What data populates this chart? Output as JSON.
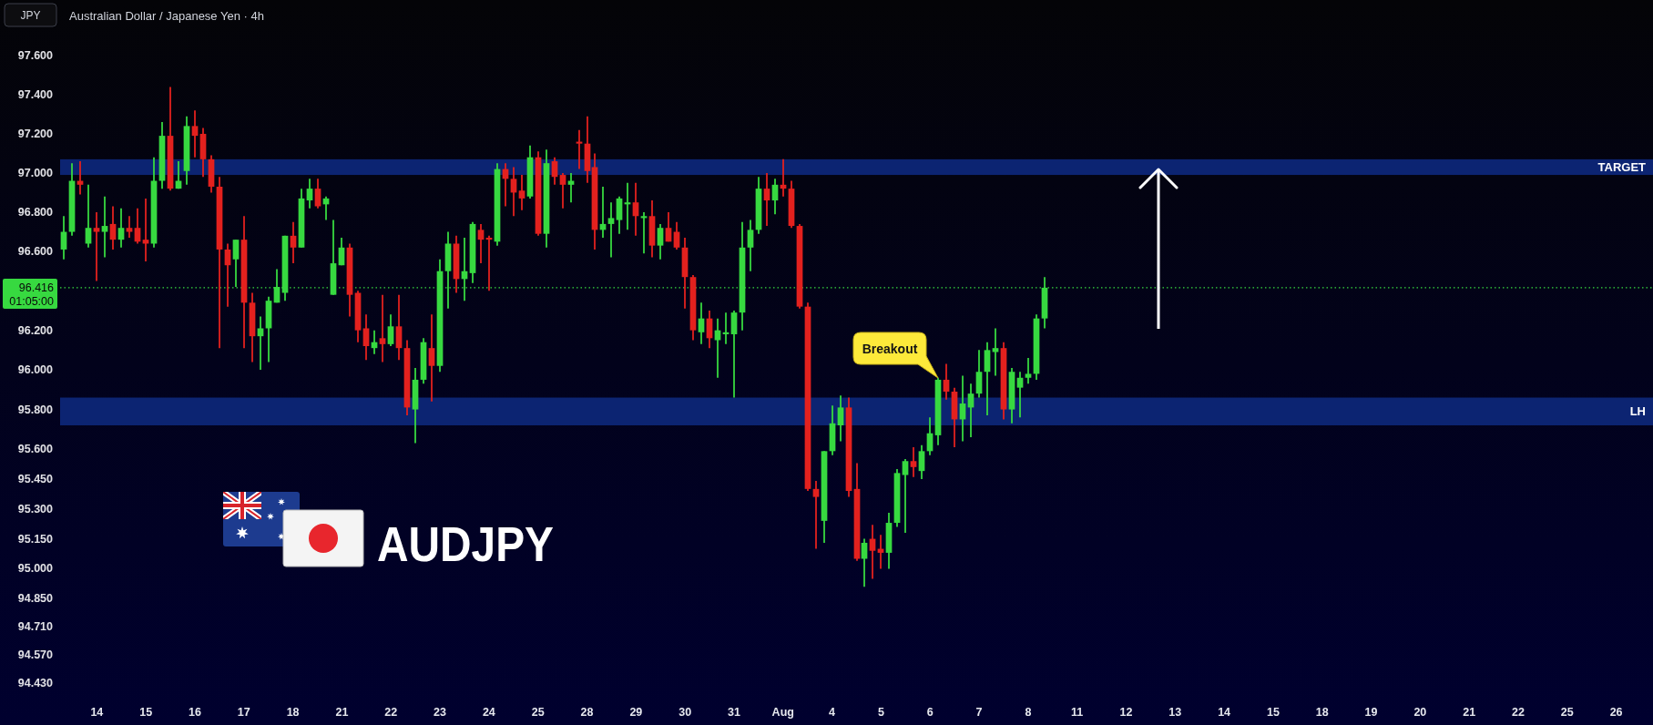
{
  "chart_data": {
    "type": "candlestick",
    "title": "Australian Dollar / Japanese Yen · 4h",
    "ylabel": "JPY",
    "categories": [
      null,
      null,
      null,
      null,
      "14",
      null,
      null,
      null,
      null,
      null,
      "15",
      null,
      null,
      null,
      null,
      null,
      "16",
      null,
      null,
      null,
      null,
      null,
      "17",
      null,
      null,
      null,
      null,
      null,
      "18",
      null,
      null,
      null,
      null,
      null,
      "21",
      null,
      null,
      null,
      null,
      null,
      "22",
      null,
      null,
      null,
      null,
      null,
      "23",
      null,
      null,
      null,
      null,
      null,
      "24",
      null,
      null,
      null,
      null,
      null,
      "25",
      null,
      null,
      null,
      null,
      null,
      "28",
      null,
      null,
      null,
      null,
      null,
      "29",
      null,
      null,
      null,
      null,
      null,
      "30",
      null,
      null,
      null,
      null,
      null,
      "31",
      null,
      null,
      null,
      null,
      null,
      "Aug",
      null,
      null,
      null,
      null,
      null,
      "4",
      null,
      null,
      null,
      null,
      null,
      "5",
      null,
      null,
      null,
      null,
      null,
      "6",
      null,
      null,
      null,
      null,
      null,
      "7",
      null,
      null,
      null,
      null,
      null,
      "8",
      null,
      null,
      null,
      null,
      null,
      "11",
      null,
      null,
      null,
      null,
      null,
      "12",
      null,
      null,
      null,
      null,
      null,
      "13",
      null,
      null,
      null,
      null,
      null,
      "14",
      null,
      null,
      null,
      null,
      null,
      "15",
      null,
      null,
      null,
      null,
      null,
      "18",
      null,
      null,
      null,
      null,
      null,
      "19",
      null,
      null,
      null,
      null,
      null,
      "20",
      null,
      null,
      null,
      null,
      null,
      "21",
      null,
      null,
      null,
      null,
      null,
      "22",
      null,
      null,
      null,
      null,
      null,
      "25",
      null,
      null,
      null,
      null,
      null,
      "26",
      null,
      null,
      null,
      null
    ],
    "ohlc": [
      [
        96.61,
        96.78,
        96.56,
        96.7
      ],
      [
        96.7,
        97.05,
        96.68,
        96.96
      ],
      [
        96.96,
        97.06,
        96.89,
        96.94
      ],
      [
        96.64,
        96.94,
        96.62,
        96.72
      ],
      [
        96.72,
        96.8,
        96.45,
        96.7
      ],
      [
        96.7,
        96.88,
        96.57,
        96.73
      ],
      [
        96.74,
        96.83,
        96.61,
        96.66
      ],
      [
        96.66,
        96.82,
        96.62,
        96.72
      ],
      [
        96.72,
        96.78,
        96.67,
        96.7
      ],
      [
        96.72,
        96.82,
        96.64,
        96.65
      ],
      [
        96.66,
        96.87,
        96.55,
        96.64
      ],
      [
        96.64,
        97.08,
        96.62,
        96.96
      ],
      [
        96.96,
        97.26,
        96.92,
        97.19
      ],
      [
        97.19,
        97.44,
        96.91,
        96.92
      ],
      [
        96.92,
        97.06,
        96.92,
        96.96
      ],
      [
        97.01,
        97.29,
        96.94,
        97.24
      ],
      [
        97.24,
        97.32,
        97.08,
        97.19
      ],
      [
        97.2,
        97.23,
        96.98,
        97.07
      ],
      [
        97.07,
        97.09,
        96.9,
        96.93
      ],
      [
        96.93,
        96.98,
        96.11,
        96.61
      ],
      [
        96.61,
        96.64,
        96.32,
        96.53
      ],
      [
        96.56,
        96.66,
        96.42,
        96.66
      ],
      [
        96.66,
        96.78,
        96.11,
        96.34
      ],
      [
        96.34,
        96.39,
        96.04,
        96.17
      ],
      [
        96.17,
        96.27,
        96.0,
        96.21
      ],
      [
        96.21,
        96.37,
        96.04,
        96.35
      ],
      [
        96.34,
        96.51,
        96.34,
        96.42
      ],
      [
        96.39,
        96.68,
        96.35,
        96.68
      ],
      [
        96.68,
        96.75,
        96.54,
        96.62
      ],
      [
        96.62,
        96.92,
        96.62,
        96.87
      ],
      [
        96.86,
        96.97,
        96.82,
        96.92
      ],
      [
        96.92,
        96.97,
        96.82,
        96.83
      ],
      [
        96.84,
        96.88,
        96.76,
        96.87
      ],
      [
        96.38,
        96.76,
        96.38,
        96.54
      ],
      [
        96.53,
        96.67,
        96.53,
        96.62
      ],
      [
        96.62,
        96.64,
        96.27,
        96.38
      ],
      [
        96.39,
        96.4,
        96.14,
        96.2
      ],
      [
        96.21,
        96.28,
        96.05,
        96.12
      ],
      [
        96.11,
        96.2,
        96.08,
        96.14
      ],
      [
        96.16,
        96.38,
        96.04,
        96.13
      ],
      [
        96.13,
        96.28,
        96.12,
        96.22
      ],
      [
        96.22,
        96.38,
        96.05,
        96.11
      ],
      [
        96.11,
        96.15,
        95.77,
        95.81
      ],
      [
        95.8,
        96.01,
        95.63,
        95.95
      ],
      [
        95.95,
        96.16,
        95.93,
        96.14
      ],
      [
        96.11,
        96.28,
        95.84,
        96.02
      ],
      [
        96.02,
        96.56,
        95.99,
        96.5
      ],
      [
        96.5,
        96.7,
        96.31,
        96.64
      ],
      [
        96.64,
        96.68,
        96.39,
        96.46
      ],
      [
        96.46,
        96.67,
        96.35,
        96.5
      ],
      [
        96.49,
        96.75,
        96.44,
        96.74
      ],
      [
        96.71,
        96.74,
        96.54,
        96.66
      ],
      [
        96.67,
        96.68,
        96.4,
        96.66
      ],
      [
        96.65,
        97.05,
        96.63,
        97.02
      ],
      [
        97.02,
        97.05,
        96.83,
        96.97
      ],
      [
        96.97,
        97.03,
        96.78,
        96.9
      ],
      [
        96.91,
        96.99,
        96.81,
        96.87
      ],
      [
        96.88,
        97.14,
        96.87,
        97.08
      ],
      [
        97.08,
        97.11,
        96.68,
        96.69
      ],
      [
        96.69,
        97.12,
        96.62,
        97.05
      ],
      [
        97.06,
        97.08,
        96.94,
        96.98
      ],
      [
        96.99,
        97.0,
        96.82,
        96.94
      ],
      [
        96.94,
        97.0,
        96.85,
        96.96
      ],
      [
        97.16,
        97.22,
        97.02,
        97.15
      ],
      [
        97.15,
        97.29,
        96.95,
        97.01
      ],
      [
        97.03,
        97.1,
        96.61,
        96.71
      ],
      [
        96.71,
        96.93,
        96.67,
        96.74
      ],
      [
        96.74,
        96.85,
        96.57,
        96.77
      ],
      [
        96.76,
        96.88,
        96.69,
        96.87
      ],
      [
        96.84,
        96.95,
        96.71,
        96.85
      ],
      [
        96.85,
        96.95,
        96.68,
        96.78
      ],
      [
        96.77,
        96.8,
        96.59,
        96.78
      ],
      [
        96.78,
        96.86,
        96.57,
        96.63
      ],
      [
        96.63,
        96.74,
        96.56,
        96.72
      ],
      [
        96.72,
        96.8,
        96.65,
        96.65
      ],
      [
        96.7,
        96.75,
        96.61,
        96.62
      ],
      [
        96.62,
        96.67,
        96.31,
        96.47
      ],
      [
        96.47,
        96.48,
        96.15,
        96.2
      ],
      [
        96.19,
        96.34,
        96.13,
        96.26
      ],
      [
        96.26,
        96.3,
        96.11,
        96.16
      ],
      [
        96.15,
        96.26,
        95.96,
        96.2
      ],
      [
        96.18,
        96.29,
        96.13,
        96.19
      ],
      [
        96.18,
        96.3,
        95.86,
        96.29
      ],
      [
        96.29,
        96.75,
        96.2,
        96.62
      ],
      [
        96.62,
        96.76,
        96.5,
        96.71
      ],
      [
        96.71,
        96.98,
        96.69,
        96.92
      ],
      [
        96.92,
        97.0,
        96.73,
        96.86
      ],
      [
        96.86,
        96.97,
        96.79,
        96.94
      ],
      [
        96.94,
        97.07,
        96.88,
        96.92
      ],
      [
        96.92,
        96.96,
        96.72,
        96.73
      ],
      [
        96.73,
        96.74,
        96.31,
        96.32
      ],
      [
        96.32,
        96.34,
        95.39,
        95.4
      ],
      [
        95.4,
        95.44,
        95.1,
        95.36
      ],
      [
        95.24,
        95.59,
        95.13,
        95.59
      ],
      [
        95.59,
        95.82,
        95.57,
        95.73
      ],
      [
        95.72,
        95.87,
        95.64,
        95.81
      ],
      [
        95.81,
        95.86,
        95.36,
        95.39
      ],
      [
        95.4,
        95.53,
        95.04,
        95.05
      ],
      [
        95.05,
        95.15,
        94.91,
        95.13
      ],
      [
        95.15,
        95.22,
        94.95,
        95.09
      ],
      [
        95.1,
        95.17,
        95.0,
        95.08
      ],
      [
        95.08,
        95.28,
        95.0,
        95.23
      ],
      [
        95.23,
        95.5,
        95.21,
        95.48
      ],
      [
        95.47,
        95.55,
        95.18,
        95.54
      ],
      [
        95.54,
        95.61,
        95.46,
        95.51
      ],
      [
        95.49,
        95.62,
        95.45,
        95.59
      ],
      [
        95.59,
        95.76,
        95.57,
        95.68
      ],
      [
        95.67,
        95.96,
        95.62,
        95.95
      ],
      [
        95.95,
        96.03,
        95.85,
        95.89
      ],
      [
        95.89,
        95.91,
        95.61,
        95.75
      ],
      [
        95.75,
        95.97,
        95.64,
        95.83
      ],
      [
        95.81,
        95.93,
        95.66,
        95.88
      ],
      [
        95.88,
        96.1,
        95.86,
        95.99
      ],
      [
        95.99,
        96.14,
        95.77,
        96.1
      ],
      [
        96.09,
        96.21,
        95.97,
        96.11
      ],
      [
        96.11,
        96.14,
        95.75,
        95.8
      ],
      [
        95.8,
        96.01,
        95.73,
        95.99
      ],
      [
        95.91,
        95.99,
        95.76,
        95.96
      ],
      [
        95.96,
        96.06,
        95.93,
        95.98
      ],
      [
        95.98,
        96.28,
        95.95,
        96.26
      ],
      [
        96.26,
        96.47,
        96.21,
        96.416
      ],
      null,
      null,
      null,
      null,
      null,
      null,
      null,
      null,
      null,
      null,
      null,
      null,
      null,
      null,
      null,
      null,
      null,
      null,
      null,
      null,
      null,
      null,
      null,
      null,
      null,
      null,
      null,
      null,
      null,
      null,
      null,
      null,
      null,
      null,
      null,
      null,
      null,
      null,
      null,
      null,
      null,
      null,
      null,
      null,
      null,
      null,
      null,
      null,
      null,
      null,
      null,
      null,
      null,
      null,
      null,
      null,
      null,
      null,
      null,
      null,
      null,
      null,
      null,
      null,
      null,
      null,
      null,
      null,
      null,
      null,
      null,
      null,
      null,
      null
    ],
    "colors": [
      "#37d940",
      "#37d940",
      "#e3211e",
      "#37d940",
      "#e3211e",
      "#37d940",
      "#e3211e",
      "#37d940",
      "#e3211e",
      "#e3211e",
      "#e3211e",
      "#37d940",
      "#37d940",
      "#e3211e",
      "#37d940",
      "#37d940",
      "#e3211e",
      "#e3211e",
      "#e3211e",
      "#e3211e",
      "#e3211e",
      "#37d940",
      "#e3211e",
      "#e3211e",
      "#37d940",
      "#37d940",
      "#37d940",
      "#37d940",
      "#e3211e",
      "#37d940",
      "#37d940",
      "#e3211e",
      "#37d940",
      "#37d940",
      "#37d940",
      "#e3211e",
      "#e3211e",
      "#e3211e",
      "#37d940",
      "#e3211e",
      "#37d940",
      "#e3211e",
      "#e3211e",
      "#37d940",
      "#37d940",
      "#e3211e",
      "#37d940",
      "#37d940",
      "#e3211e",
      "#37d940",
      "#37d940",
      "#e3211e",
      "#e3211e",
      "#37d940",
      "#e3211e",
      "#e3211e",
      "#e3211e",
      "#37d940",
      "#e3211e",
      "#37d940",
      "#e3211e",
      "#e3211e",
      "#37d940",
      "#e3211e",
      "#e3211e",
      "#e3211e",
      "#37d940",
      "#37d940",
      "#37d940",
      "#37d940",
      "#e3211e",
      "#37d940",
      "#e3211e",
      "#37d940",
      "#e3211e",
      "#e3211e",
      "#e3211e",
      "#e3211e",
      "#37d940",
      "#e3211e",
      "#37d940",
      "#37d940",
      "#37d940",
      "#37d940",
      "#37d940",
      "#37d940",
      "#e3211e",
      "#37d940",
      "#e3211e",
      "#e3211e",
      "#e3211e",
      "#e3211e",
      "#e3211e",
      "#37d940",
      "#37d940",
      "#37d940",
      "#e3211e",
      "#e3211e",
      "#37d940",
      "#e3211e",
      "#e3211e",
      "#37d940",
      "#37d940",
      "#37d940",
      "#e3211e",
      "#37d940",
      "#37d940",
      "#37d940",
      "#e3211e",
      "#e3211e",
      "#37d940",
      "#37d940",
      "#37d940",
      "#37d940",
      "#37d940",
      "#e3211e",
      "#37d940",
      "#37d940",
      "#37d940",
      "#37d940",
      "#37d940",
      null,
      null,
      null,
      null,
      null,
      null,
      null,
      null,
      null,
      null,
      null,
      null,
      null,
      null,
      null,
      null,
      null,
      null,
      null,
      null,
      null,
      null,
      null,
      null,
      null,
      null,
      null,
      null,
      null,
      null,
      null,
      null,
      null,
      null,
      null,
      null,
      null,
      null,
      null,
      null,
      null,
      null,
      null,
      null,
      null,
      null,
      null,
      null,
      null,
      null,
      null,
      null,
      null,
      null,
      null,
      null,
      null,
      null,
      null,
      null,
      null,
      null,
      null,
      null,
      null,
      null,
      null,
      null,
      null,
      null,
      null,
      null,
      null,
      null
    ],
    "log": true,
    "ylim": [
      94.43,
      97.6
    ],
    "yticks": [
      {
        "value": 97.6,
        "label": "97.600"
      },
      {
        "value": 97.4,
        "label": "97.400"
      },
      {
        "value": 97.2,
        "label": "97.200"
      },
      {
        "value": 97.0,
        "label": "97.000"
      },
      {
        "value": 96.8,
        "label": "96.800"
      },
      {
        "value": 96.6,
        "label": "96.600"
      },
      {
        "value": 96.2,
        "label": "96.200"
      },
      {
        "value": 96.0,
        "label": "96.000"
      },
      {
        "value": 95.8,
        "label": "95.800"
      },
      {
        "value": 95.6,
        "label": "95.600"
      },
      {
        "value": 95.45,
        "label": "95.450"
      },
      {
        "value": 95.3,
        "label": "95.300"
      },
      {
        "value": 95.15,
        "label": "95.150"
      },
      {
        "value": 95.0,
        "label": "95.000"
      },
      {
        "value": 94.85,
        "label": "94.850"
      },
      {
        "value": 94.71,
        "label": "94.710"
      },
      {
        "value": 94.57,
        "label": "94.570"
      },
      {
        "value": 94.43,
        "label": "94.430"
      }
    ],
    "bands": [
      {
        "axis": "y",
        "from": 96.99,
        "to": 97.07,
        "label": "TARGET",
        "color": "#0c2472"
      },
      {
        "axis": "y",
        "from": 95.72,
        "to": 95.86,
        "label": "LH",
        "color": "#0c2472"
      }
    ],
    "ref_lines": [
      {
        "axis": "y",
        "value": 96.416,
        "label": "96.416",
        "color": "#37d940",
        "line_style": "dotted"
      }
    ],
    "annotations": [
      "Breakout",
      "AUDJPY",
      "01:05:00"
    ]
  }
}
